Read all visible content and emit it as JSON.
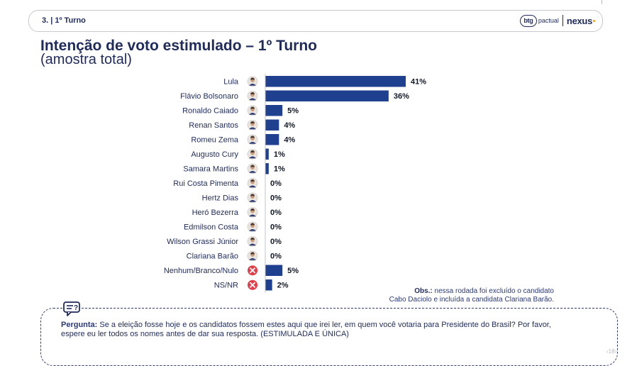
{
  "header": {
    "section": "3. | 1º Turno",
    "logo_btg": "btg",
    "logo_btg_word": "pactual",
    "logo_nexus": "nexus"
  },
  "title": "Intenção de voto estimulado – 1º Turno",
  "subtitle": "(amostra total)",
  "chart_data": {
    "type": "bar",
    "orientation": "horizontal",
    "categories": [
      "Lula",
      "Flávio Bolsonaro",
      "Ronaldo Caiado",
      "Renan Santos",
      "Romeu Zema",
      "Augusto Cury",
      "Samara Martins",
      "Rui Costa Pimenta",
      "Hertz Dias",
      "Heró Bezerra",
      "Edmilson Costa",
      "Wilson Grassi Júnior",
      "Clariana Barão",
      "Nenhum/Branco/Nulo",
      "NS/NR"
    ],
    "values": [
      41,
      36,
      5,
      4,
      4,
      1,
      1,
      0,
      0,
      0,
      0,
      0,
      0,
      5,
      2
    ],
    "value_labels": [
      "41%",
      "36%",
      "5%",
      "4%",
      "4%",
      "1%",
      "1%",
      "0%",
      "0%",
      "0%",
      "0%",
      "0%",
      "0%",
      "5%",
      "2%"
    ],
    "icons": [
      "avatar-icon",
      "avatar-icon",
      "avatar-icon",
      "avatar-icon",
      "avatar-icon",
      "avatar-icon",
      "avatar-icon",
      "avatar-icon",
      "avatar-icon",
      "avatar-icon",
      "avatar-icon",
      "avatar-icon",
      "avatar-icon",
      "close-circle-icon",
      "close-circle-icon"
    ],
    "bar_color": "#1f3f8f",
    "xlim": [
      0,
      41
    ],
    "grid": false
  },
  "note": {
    "label": "Obs.:",
    "line1": " nessa rodada foi excluído o candidato",
    "line2": "Cabo Daciolo e incluída a candidata Clariana Barão."
  },
  "question": {
    "label": "Pergunta:",
    "text": " Se a eleição fosse hoje e os candidatos fossem estes aqui que irei ler, em quem você votaria para Presidente do Brasil? Por favor, espere eu ler todos os nomes antes de dar sua resposta. (ESTIMULADA E ÚNICA)"
  },
  "page_number": "‹18›",
  "colors": {
    "navy": "#1f2b5b",
    "bar": "#1f3f8f",
    "none_icon": "#e0404a",
    "nexus_dot": "#f0a020"
  }
}
